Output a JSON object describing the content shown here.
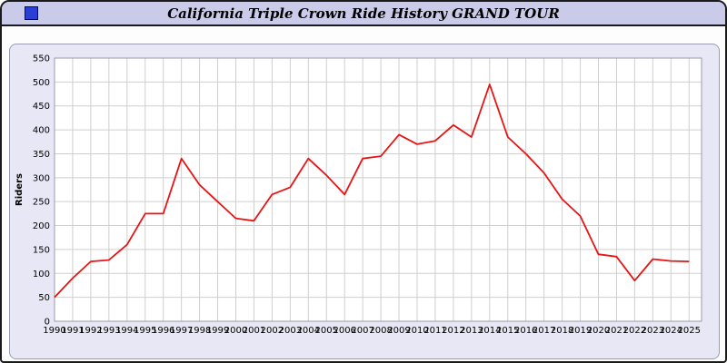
{
  "window": {
    "title": "California Triple Crown Ride History GRAND TOUR"
  },
  "colors": {
    "window_border": "#1a1a1a",
    "titlebar_bg": "#c9cbe9",
    "icon_blue": "#2b3fd6",
    "panel_bg": "#e7e7f5",
    "plot_bg": "#ffffff",
    "grid": "#cfcfcf",
    "axis": "#9a9aa8",
    "text": "#000000",
    "line": "#e81414"
  },
  "chart_data": {
    "type": "line",
    "title": "California Triple Crown Ride History GRAND TOUR",
    "xlabel": "",
    "ylabel": "Riders",
    "ylim": [
      0,
      550
    ],
    "ytick_step": 50,
    "grid": true,
    "legend_position": "none",
    "x": [
      1990,
      1991,
      1992,
      1993,
      1994,
      1995,
      1996,
      1997,
      1998,
      1999,
      2000,
      2001,
      2002,
      2003,
      2004,
      2005,
      2006,
      2007,
      2008,
      2009,
      2010,
      2011,
      2012,
      2013,
      2014,
      2015,
      2016,
      2017,
      2018,
      2019,
      2020,
      2021,
      2022,
      2023,
      2024,
      2025
    ],
    "values": [
      50,
      90,
      125,
      128,
      160,
      225,
      225,
      340,
      285,
      250,
      215,
      210,
      265,
      280,
      340,
      305,
      265,
      340,
      345,
      390,
      370,
      377,
      410,
      385,
      495,
      385,
      350,
      310,
      255,
      220,
      140,
      135,
      85,
      130,
      126,
      125
    ]
  }
}
